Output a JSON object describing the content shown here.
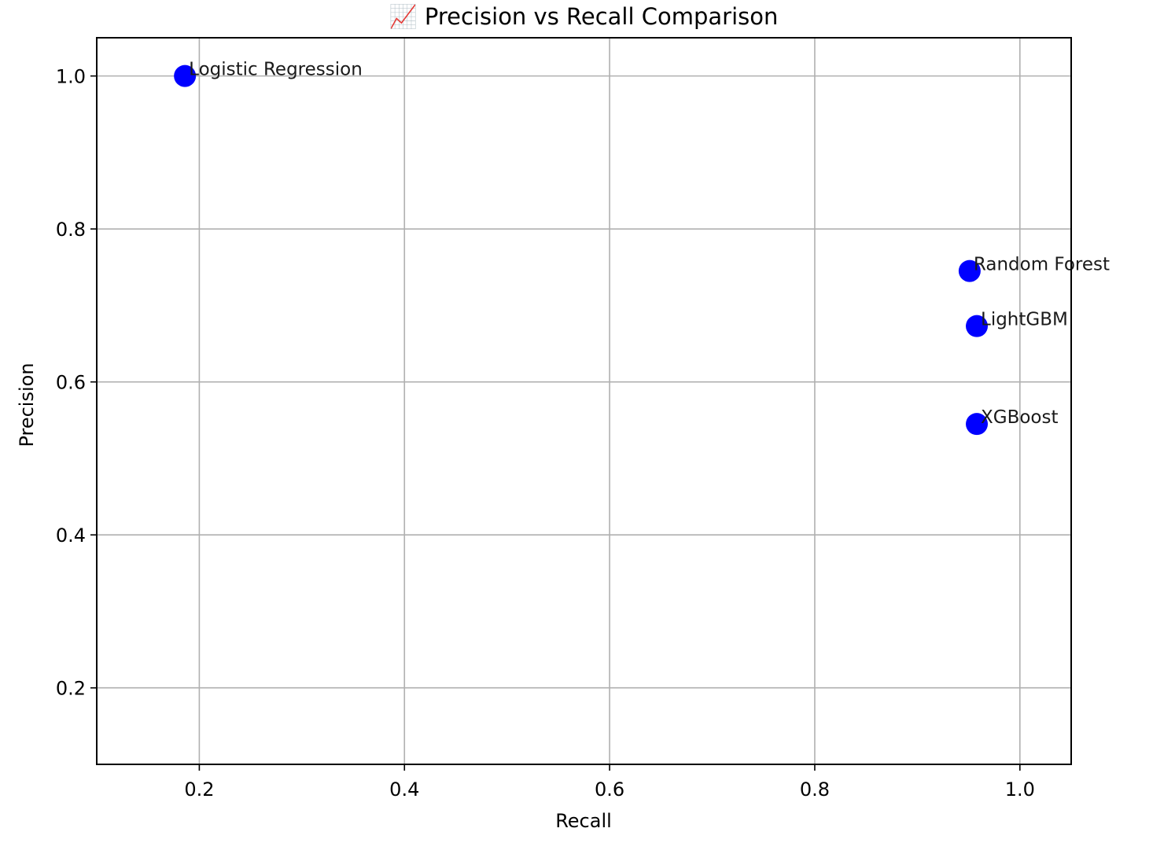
{
  "chart_data": {
    "type": "scatter",
    "title": "📈 Precision vs Recall Comparison",
    "xlabel": "Recall",
    "ylabel": "Precision",
    "xlim": [
      0.1,
      1.05
    ],
    "ylim": [
      0.1,
      1.05
    ],
    "xticks": [
      0.2,
      0.4,
      0.6,
      0.8,
      1.0
    ],
    "xtick_labels": [
      "0.2",
      "0.4",
      "0.6",
      "0.8",
      "1.0"
    ],
    "yticks": [
      0.2,
      0.4,
      0.6,
      0.8,
      1.0
    ],
    "ytick_labels": [
      "0.2",
      "0.4",
      "0.6",
      "0.8",
      "1.0"
    ],
    "grid": true,
    "point_color": "#0000ff",
    "points": [
      {
        "label": "Logistic Regression",
        "x": 0.186,
        "y": 1.0
      },
      {
        "label": "Random Forest",
        "x": 0.951,
        "y": 0.745
      },
      {
        "label": "LightGBM",
        "x": 0.958,
        "y": 0.673
      },
      {
        "label": "XGBoost",
        "x": 0.958,
        "y": 0.545
      }
    ]
  }
}
